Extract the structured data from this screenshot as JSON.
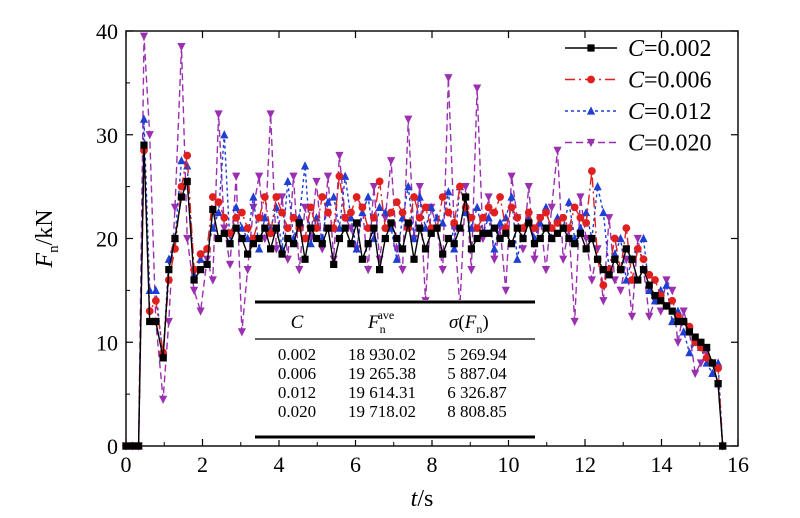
{
  "chart_data": {
    "type": "line",
    "xlabel": {
      "var": "t",
      "unit": "/s"
    },
    "ylabel": {
      "var": "F",
      "sub": "n",
      "unit": "/kN"
    },
    "xlim": [
      0,
      16
    ],
    "ylim": [
      0,
      40
    ],
    "x_ticks": [
      "0",
      "2",
      "4",
      "6",
      "8",
      "10",
      "12",
      "14",
      "16"
    ],
    "y_ticks": [
      "0",
      "10",
      "20",
      "30",
      "40"
    ],
    "legend_position": "top-right",
    "series": [
      {
        "name": "C=0.002",
        "legend_var": "C",
        "legend_val": "=0.002",
        "color": "#000000",
        "dash": "",
        "marker": "square",
        "x": [
          0,
          0.17,
          0.33,
          0.47,
          0.62,
          0.78,
          0.97,
          1.12,
          1.28,
          1.45,
          1.6,
          1.78,
          1.95,
          2.12,
          2.27,
          2.42,
          2.57,
          2.72,
          2.88,
          3.03,
          3.18,
          3.33,
          3.48,
          3.63,
          3.78,
          3.93,
          4.08,
          4.23,
          4.38,
          4.53,
          4.68,
          4.83,
          4.98,
          5.13,
          5.28,
          5.43,
          5.58,
          5.73,
          5.88,
          6.03,
          6.18,
          6.33,
          6.48,
          6.63,
          6.78,
          6.93,
          7.08,
          7.23,
          7.38,
          7.53,
          7.68,
          7.83,
          7.98,
          8.13,
          8.28,
          8.43,
          8.58,
          8.73,
          8.88,
          9.03,
          9.18,
          9.33,
          9.48,
          9.63,
          9.78,
          9.93,
          10.08,
          10.23,
          10.38,
          10.53,
          10.68,
          10.83,
          10.98,
          11.13,
          11.28,
          11.43,
          11.58,
          11.73,
          11.88,
          12.03,
          12.18,
          12.33,
          12.48,
          12.63,
          12.78,
          12.93,
          13.08,
          13.23,
          13.38,
          13.53,
          13.68,
          13.83,
          13.98,
          14.13,
          14.28,
          14.43,
          14.58,
          14.73,
          14.88,
          15.03,
          15.18,
          15.33,
          15.48,
          15.6
        ],
        "y": [
          0,
          0,
          0,
          29,
          12,
          12,
          8.5,
          17,
          20,
          24,
          25.5,
          16,
          17,
          17.5,
          22.8,
          20,
          20.5,
          19.5,
          21,
          20,
          18.5,
          19.5,
          20,
          21,
          19,
          21,
          18.5,
          20,
          19.5,
          21.5,
          18,
          21,
          20,
          19.5,
          21,
          17.5,
          20,
          21,
          19.5,
          21.5,
          18,
          19.5,
          21,
          17,
          20,
          21.5,
          20,
          19,
          21.5,
          18,
          21,
          19,
          20.5,
          21,
          18.5,
          20,
          19.5,
          21,
          24,
          19,
          20,
          20.5,
          20.5,
          21,
          20,
          20.5,
          19.5,
          21,
          20,
          21.5,
          19.5,
          20,
          21,
          20,
          20.5,
          21,
          20,
          19.5,
          20.5,
          19,
          20,
          18,
          17,
          16.5,
          18,
          17,
          19,
          18,
          16,
          17,
          15.5,
          14.5,
          14,
          13.5,
          13,
          12,
          12,
          11,
          10.5,
          10,
          9.5,
          8,
          6,
          0
        ]
      },
      {
        "name": "C=0.006",
        "legend_var": "C",
        "legend_val": "=0.006",
        "color": "#e0201f",
        "dash": "10,4,2,4",
        "marker": "circle",
        "x": [
          0,
          0.17,
          0.33,
          0.47,
          0.62,
          0.78,
          0.97,
          1.12,
          1.28,
          1.45,
          1.6,
          1.78,
          1.95,
          2.12,
          2.27,
          2.42,
          2.57,
          2.72,
          2.88,
          3.03,
          3.18,
          3.33,
          3.48,
          3.63,
          3.78,
          3.93,
          4.08,
          4.23,
          4.38,
          4.53,
          4.68,
          4.83,
          4.98,
          5.13,
          5.28,
          5.43,
          5.58,
          5.73,
          5.88,
          6.03,
          6.18,
          6.33,
          6.48,
          6.63,
          6.78,
          6.93,
          7.08,
          7.23,
          7.38,
          7.53,
          7.68,
          7.83,
          7.98,
          8.13,
          8.28,
          8.43,
          8.58,
          8.73,
          8.88,
          9.03,
          9.18,
          9.33,
          9.48,
          9.63,
          9.78,
          9.93,
          10.08,
          10.23,
          10.38,
          10.53,
          10.68,
          10.83,
          10.98,
          11.13,
          11.28,
          11.43,
          11.58,
          11.73,
          11.88,
          12.03,
          12.18,
          12.33,
          12.48,
          12.63,
          12.78,
          12.93,
          13.08,
          13.23,
          13.38,
          13.53,
          13.68,
          13.83,
          13.98,
          14.13,
          14.28,
          14.43,
          14.58,
          14.73,
          14.88,
          15.03,
          15.18,
          15.33,
          15.48,
          15.6
        ],
        "y": [
          0,
          0,
          0,
          28.5,
          13,
          14,
          9,
          16,
          19,
          25,
          28,
          17,
          18.5,
          19,
          24,
          23.5,
          22,
          20.5,
          22,
          22.5,
          21,
          20,
          22,
          24,
          20.5,
          24,
          22.5,
          21,
          22,
          21,
          20,
          23,
          21,
          24,
          22.5,
          21,
          26,
          22,
          22.5,
          24,
          23,
          21,
          22,
          25.5,
          21,
          22.5,
          23.5,
          22.5,
          21,
          24,
          22,
          23,
          21,
          21,
          24,
          22.5,
          21.5,
          25,
          23,
          22,
          21,
          22,
          23,
          22.5,
          24,
          21,
          23,
          22,
          21,
          22.5,
          21,
          22,
          22.5,
          21,
          21.5,
          22,
          21,
          23,
          22,
          21.5,
          26.5,
          18,
          15.5,
          17,
          20,
          17,
          21,
          16,
          19,
          18,
          16.5,
          16,
          14.5,
          13.5,
          14,
          12.5,
          12,
          11.5,
          10,
          9.5,
          8.5,
          8,
          7.5,
          0
        ]
      },
      {
        "name": "C=0.012",
        "legend_var": "C",
        "legend_val": "=0.012",
        "color": "#1f3fd4",
        "dash": "3,3",
        "marker": "triangle-up",
        "x": [
          0,
          0.17,
          0.33,
          0.47,
          0.62,
          0.78,
          0.97,
          1.12,
          1.28,
          1.45,
          1.6,
          1.78,
          1.95,
          2.12,
          2.27,
          2.42,
          2.57,
          2.72,
          2.88,
          3.03,
          3.18,
          3.33,
          3.48,
          3.63,
          3.78,
          3.93,
          4.08,
          4.23,
          4.38,
          4.53,
          4.68,
          4.83,
          4.98,
          5.13,
          5.28,
          5.43,
          5.58,
          5.73,
          5.88,
          6.03,
          6.18,
          6.33,
          6.48,
          6.63,
          6.78,
          6.93,
          7.08,
          7.23,
          7.38,
          7.53,
          7.68,
          7.83,
          7.98,
          8.13,
          8.28,
          8.43,
          8.58,
          8.73,
          8.88,
          9.03,
          9.18,
          9.33,
          9.48,
          9.63,
          9.78,
          9.93,
          10.08,
          10.23,
          10.38,
          10.53,
          10.68,
          10.83,
          10.98,
          11.13,
          11.28,
          11.43,
          11.58,
          11.73,
          11.88,
          12.03,
          12.18,
          12.33,
          12.48,
          12.63,
          12.78,
          12.93,
          13.08,
          13.23,
          13.38,
          13.53,
          13.68,
          13.83,
          13.98,
          14.13,
          14.28,
          14.43,
          14.58,
          14.73,
          14.88,
          15.03,
          15.18,
          15.33,
          15.48,
          15.6
        ],
        "y": [
          0,
          0,
          0,
          31.5,
          15,
          15,
          8.5,
          18,
          20,
          27.5,
          27,
          16.5,
          18,
          19,
          21,
          22.5,
          30,
          19.5,
          23,
          21,
          20,
          24,
          19,
          22,
          21,
          23,
          19,
          25.5,
          20,
          22,
          27,
          19.5,
          22,
          20,
          23.5,
          24,
          21,
          26,
          22,
          19,
          22.5,
          24,
          20,
          23,
          22.5,
          21,
          18,
          22,
          25,
          20,
          24,
          21,
          23,
          22,
          21.5,
          24.5,
          19,
          25,
          22.5,
          21,
          23,
          20.5,
          22,
          19,
          21.5,
          22,
          24,
          18,
          21,
          22,
          20,
          21.5,
          23,
          20,
          22,
          21,
          23.5,
          20,
          21,
          22.5,
          20,
          25,
          22.5,
          17,
          18.5,
          20,
          16,
          18,
          19,
          20,
          15,
          14,
          15,
          15.5,
          12,
          13,
          11,
          9,
          10,
          9.5,
          8,
          7,
          8,
          0
        ]
      },
      {
        "name": "C=0.020",
        "legend_var": "C",
        "legend_val": "=0.020",
        "color": "#9a2fb0",
        "dash": "7,4",
        "marker": "triangle-down",
        "x": [
          0,
          0.17,
          0.33,
          0.47,
          0.62,
          0.78,
          0.97,
          1.12,
          1.28,
          1.45,
          1.6,
          1.78,
          1.95,
          2.12,
          2.27,
          2.42,
          2.57,
          2.72,
          2.88,
          3.03,
          3.18,
          3.33,
          3.48,
          3.63,
          3.78,
          3.93,
          4.08,
          4.23,
          4.38,
          4.53,
          4.68,
          4.83,
          4.98,
          5.13,
          5.28,
          5.43,
          5.58,
          5.73,
          5.88,
          6.03,
          6.18,
          6.33,
          6.48,
          6.63,
          6.78,
          6.93,
          7.08,
          7.23,
          7.38,
          7.53,
          7.68,
          7.83,
          7.98,
          8.13,
          8.28,
          8.43,
          8.58,
          8.73,
          8.88,
          9.03,
          9.18,
          9.33,
          9.48,
          9.63,
          9.78,
          9.93,
          10.08,
          10.23,
          10.38,
          10.53,
          10.68,
          10.83,
          10.98,
          11.13,
          11.28,
          11.43,
          11.58,
          11.73,
          11.88,
          12.03,
          12.18,
          12.33,
          12.48,
          12.63,
          12.78,
          12.93,
          13.08,
          13.23,
          13.38,
          13.53,
          13.68,
          13.83,
          13.98,
          14.13,
          14.28,
          14.43,
          14.58,
          14.73,
          14.88,
          15.03,
          15.18,
          15.33,
          15.48,
          15.6
        ],
        "y": [
          0,
          0,
          0,
          39.5,
          30,
          12,
          4.5,
          12,
          23,
          38.5,
          20,
          15,
          13,
          18,
          16,
          32,
          21,
          17.5,
          26,
          11,
          17,
          23,
          26,
          20,
          32,
          19,
          24,
          18,
          26,
          17,
          23,
          20,
          25.5,
          19,
          26,
          18,
          28,
          22,
          21,
          19,
          23,
          17,
          25,
          18,
          22,
          27.5,
          19,
          17,
          31.5,
          20,
          25,
          14,
          23,
          21,
          17,
          35.5,
          21,
          13.5,
          25,
          17,
          34.5,
          20,
          24,
          18,
          21,
          15,
          26,
          22,
          19,
          25,
          18,
          22,
          17,
          23,
          28.5,
          18,
          21,
          12,
          24,
          20,
          16,
          19,
          14,
          22,
          16,
          15,
          18,
          12.5,
          20,
          17,
          12.5,
          14,
          13,
          16,
          15,
          10,
          13,
          11,
          7,
          8,
          9,
          8,
          6,
          0
        ]
      }
    ],
    "table": {
      "columns": [
        {
          "var": "C",
          "sup": "",
          "sub": "",
          "paren": ""
        },
        {
          "var": "F",
          "sup": "ave",
          "sub": "n",
          "paren": ""
        },
        {
          "var": "σ",
          "sup": "",
          "sub": "n",
          "paren": "F"
        }
      ],
      "rows": [
        [
          "0.002",
          "18 930.02",
          "5 269.94"
        ],
        [
          "0.006",
          "19 265.38",
          "5 887.04"
        ],
        [
          "0.012",
          "19 614.31",
          "6 326.87"
        ],
        [
          "0.020",
          "19 718.02",
          "8 808.85"
        ]
      ]
    }
  }
}
